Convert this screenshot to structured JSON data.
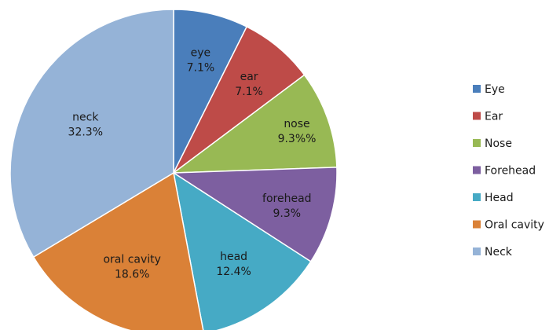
{
  "chart_data": {
    "type": "pie",
    "start_angle_deg": 0,
    "direction": "clockwise",
    "legend_position": "right",
    "slices": [
      {
        "legend": "Eye",
        "label": "eye",
        "value_label": "7.1%",
        "value": 7.1,
        "color": "#4A7EBB"
      },
      {
        "legend": "Ear",
        "label": "ear",
        "value_label": "7.1%",
        "value": 7.1,
        "color": "#BE4B48"
      },
      {
        "legend": "Nose",
        "label": "nose",
        "value_label": "9.3%%",
        "value": 9.3,
        "color": "#98B954"
      },
      {
        "legend": "Forehead",
        "label": "forehead",
        "value_label": "9.3%",
        "value": 9.3,
        "color": "#7D5FA0"
      },
      {
        "legend": "Head",
        "label": "head",
        "value_label": "12.4%",
        "value": 12.4,
        "color": "#46AAC5"
      },
      {
        "legend": "Oral cavity",
        "label": "oral cavity",
        "value_label": "18.6%",
        "value": 18.6,
        "color": "#DA8137"
      },
      {
        "legend": "Neck",
        "label": "neck",
        "value_label": "32.3%",
        "value": 32.3,
        "color": "#95B3D7"
      }
    ]
  }
}
